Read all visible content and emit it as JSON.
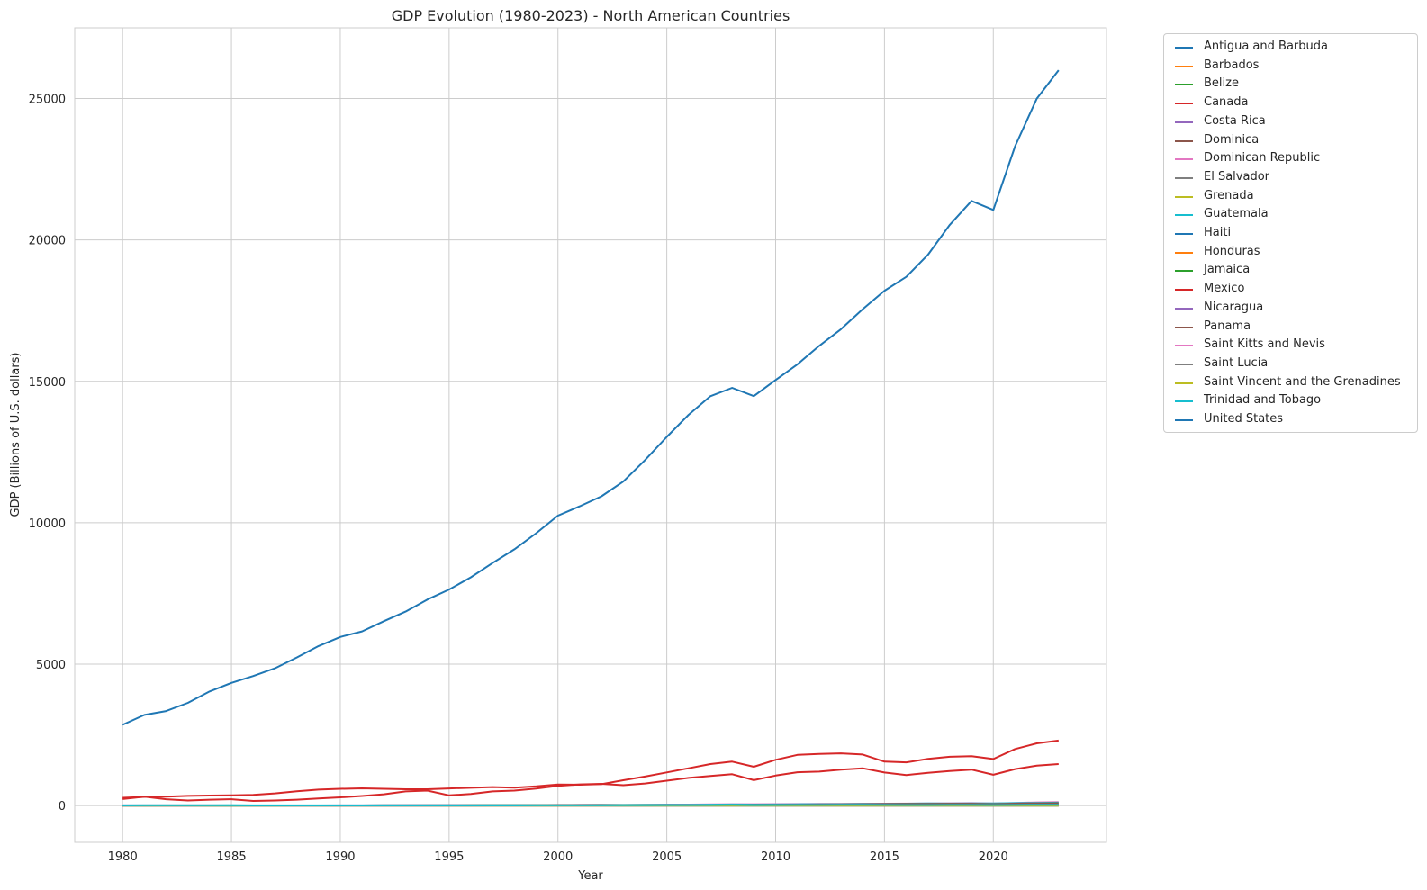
{
  "chart_data": {
    "type": "line",
    "title": "GDP Evolution (1980-2023) - North American Countries",
    "xlabel": "Year",
    "ylabel": "GDP (Billions of U.S. dollars)",
    "xlim": [
      1977.8,
      2025.2
    ],
    "ylim": [
      -1300,
      27500
    ],
    "xticks": [
      1980,
      1985,
      1990,
      1995,
      2000,
      2005,
      2010,
      2015,
      2020
    ],
    "yticks": [
      0,
      5000,
      10000,
      15000,
      20000,
      25000
    ],
    "grid": true,
    "legend_position": "outside-right",
    "x": [
      1980,
      1981,
      1982,
      1983,
      1984,
      1985,
      1986,
      1987,
      1988,
      1989,
      1990,
      1991,
      1992,
      1993,
      1994,
      1995,
      1996,
      1997,
      1998,
      1999,
      2000,
      2001,
      2002,
      2003,
      2004,
      2005,
      2006,
      2007,
      2008,
      2009,
      2010,
      2011,
      2012,
      2013,
      2014,
      2015,
      2016,
      2017,
      2018,
      2019,
      2020,
      2021,
      2022,
      2023
    ],
    "series": [
      {
        "name": "Antigua and Barbuda",
        "color": "#1f77b4",
        "values": [
          0.1,
          0.1,
          0.1,
          0.2,
          0.2,
          0.2,
          0.3,
          0.3,
          0.3,
          0.4,
          0.4,
          0.4,
          0.4,
          0.4,
          0.5,
          0.5,
          0.5,
          0.6,
          0.6,
          0.6,
          0.8,
          0.8,
          0.8,
          0.8,
          0.9,
          1.0,
          1.1,
          1.2,
          1.3,
          1.2,
          1.1,
          1.1,
          1.2,
          1.2,
          1.3,
          1.4,
          1.4,
          1.5,
          1.6,
          1.7,
          1.4,
          1.5,
          1.7,
          1.9
        ]
      },
      {
        "name": "Barbados",
        "color": "#ff7f0e",
        "values": [
          0.9,
          1.0,
          1.0,
          1.1,
          1.2,
          1.2,
          1.3,
          1.4,
          1.5,
          1.6,
          1.7,
          1.7,
          1.6,
          1.6,
          1.7,
          1.8,
          1.9,
          2.1,
          2.3,
          2.4,
          2.6,
          2.7,
          2.7,
          2.8,
          3.0,
          3.3,
          3.6,
          3.9,
          4.0,
          3.9,
          3.9,
          3.9,
          4.0,
          4.0,
          4.1,
          4.3,
          4.5,
          4.6,
          4.7,
          4.9,
          4.5,
          4.7,
          5.6,
          6.2
        ]
      },
      {
        "name": "Belize",
        "color": "#2ca02c",
        "values": [
          0.2,
          0.2,
          0.2,
          0.2,
          0.2,
          0.2,
          0.2,
          0.3,
          0.3,
          0.3,
          0.4,
          0.4,
          0.5,
          0.5,
          0.5,
          0.6,
          0.6,
          0.6,
          0.6,
          0.7,
          0.8,
          0.8,
          0.9,
          0.9,
          1.0,
          1.1,
          1.2,
          1.3,
          1.4,
          1.3,
          1.4,
          1.5,
          1.6,
          1.6,
          1.7,
          1.8,
          1.8,
          1.9,
          1.9,
          2.0,
          1.7,
          2.2,
          2.6,
          3.0
        ]
      },
      {
        "name": "Canada",
        "color": "#d62728",
        "values": [
          274,
          307,
          314,
          341,
          355,
          364,
          377,
          431,
          507,
          566,
          594,
          610,
          592,
          578,
          579,
          605,
          630,
          654,
          634,
          678,
          744,
          738,
          760,
          896,
          1026,
          1173,
          1319,
          1468,
          1553,
          1374,
          1617,
          1793,
          1829,
          1847,
          1806,
          1556,
          1528,
          1650,
          1725,
          1744,
          1648,
          2001,
          2200,
          2300
        ]
      },
      {
        "name": "Costa Rica",
        "color": "#9467bd",
        "values": [
          5,
          3,
          3,
          3,
          4,
          4,
          5,
          5,
          5,
          5,
          6,
          6,
          7,
          8,
          9,
          11,
          11,
          12,
          12,
          13,
          14,
          15,
          16,
          17,
          18,
          20,
          22,
          26,
          29,
          30,
          37,
          42,
          46,
          49,
          50,
          55,
          57,
          58,
          60,
          62,
          61,
          64,
          69,
          86
        ]
      },
      {
        "name": "Dominica",
        "color": "#8c564b",
        "values": [
          0.1,
          0.1,
          0.1,
          0.1,
          0.1,
          0.1,
          0.1,
          0.1,
          0.1,
          0.2,
          0.2,
          0.2,
          0.2,
          0.2,
          0.2,
          0.2,
          0.3,
          0.3,
          0.3,
          0.3,
          0.3,
          0.3,
          0.3,
          0.3,
          0.3,
          0.3,
          0.3,
          0.4,
          0.4,
          0.5,
          0.5,
          0.5,
          0.5,
          0.5,
          0.5,
          0.5,
          0.6,
          0.5,
          0.6,
          0.6,
          0.5,
          0.6,
          0.6,
          0.7
        ]
      },
      {
        "name": "Dominican Republic",
        "color": "#e377c2",
        "values": [
          7,
          8,
          8,
          9,
          9,
          5,
          6,
          5,
          5,
          6,
          7,
          8,
          9,
          10,
          10,
          12,
          13,
          15,
          16,
          17,
          24,
          26,
          27,
          22,
          23,
          36,
          38,
          43,
          48,
          48,
          53,
          57,
          61,
          62,
          66,
          69,
          73,
          76,
          81,
          89,
          79,
          94,
          113,
          121
        ]
      },
      {
        "name": "El Salvador",
        "color": "#7f7f7f",
        "values": [
          4,
          4,
          4,
          4,
          4,
          4,
          4,
          4,
          5,
          5,
          5,
          5,
          6,
          6,
          7,
          8,
          9,
          10,
          11,
          12,
          12,
          13,
          14,
          15,
          16,
          17,
          18,
          20,
          21,
          20,
          21,
          22,
          23,
          24,
          25,
          26,
          27,
          28,
          28,
          29,
          27,
          29,
          32,
          34
        ]
      },
      {
        "name": "Grenada",
        "color": "#bcbd22",
        "values": [
          0.1,
          0.1,
          0.1,
          0.1,
          0.1,
          0.1,
          0.1,
          0.1,
          0.2,
          0.2,
          0.2,
          0.2,
          0.2,
          0.2,
          0.3,
          0.3,
          0.3,
          0.3,
          0.3,
          0.4,
          0.5,
          0.5,
          0.5,
          0.5,
          0.6,
          0.7,
          0.7,
          0.8,
          0.8,
          0.8,
          0.8,
          0.8,
          0.8,
          0.8,
          0.9,
          1.0,
          1.0,
          1.1,
          1.2,
          1.2,
          1.1,
          1.2,
          1.3,
          1.4
        ]
      },
      {
        "name": "Guatemala",
        "color": "#17becf",
        "values": [
          8,
          9,
          9,
          9,
          9,
          10,
          7,
          7,
          8,
          8,
          8,
          9,
          10,
          11,
          12,
          14,
          15,
          17,
          19,
          18,
          19,
          21,
          23,
          25,
          27,
          28,
          30,
          34,
          39,
          38,
          41,
          47,
          50,
          54,
          58,
          63,
          68,
          74,
          73,
          77,
          77,
          86,
          95,
          104
        ]
      },
      {
        "name": "Haiti",
        "color": "#1f77b4",
        "values": [
          1.5,
          1.6,
          1.7,
          1.8,
          1.9,
          2.0,
          2.2,
          2.1,
          2.2,
          2.3,
          2.5,
          2.6,
          2.5,
          2.3,
          2.3,
          2.7,
          2.9,
          3.3,
          3.6,
          3.9,
          3.9,
          3.6,
          3.4,
          3.0,
          3.6,
          4.3,
          4.8,
          5.9,
          6.5,
          6.6,
          6.6,
          7.5,
          7.9,
          8.5,
          8.8,
          8.8,
          8.0,
          8.4,
          9.7,
          8.5,
          8.5,
          11.0,
          14.0,
          16.0
        ]
      },
      {
        "name": "Honduras",
        "color": "#ff7f0e",
        "values": [
          2.8,
          3.0,
          3.1,
          3.3,
          3.5,
          3.7,
          3.9,
          4.2,
          4.5,
          4.9,
          3.6,
          3.7,
          3.7,
          3.7,
          3.6,
          4.0,
          4.1,
          4.7,
          5.3,
          5.4,
          7.1,
          7.6,
          7.8,
          8.1,
          8.6,
          9.6,
          10.8,
          12.3,
          13.8,
          14.6,
          15.8,
          17.7,
          18.5,
          18.5,
          19.8,
          21.0,
          21.7,
          23.1,
          24.0,
          25.1,
          23.8,
          28.5,
          31.7,
          34.4
        ]
      },
      {
        "name": "Jamaica",
        "color": "#2ca02c",
        "values": [
          2.7,
          3.0,
          3.2,
          3.4,
          2.4,
          2.0,
          2.6,
          3.0,
          3.5,
          4.1,
          4.6,
          3.6,
          3.4,
          4.4,
          4.7,
          5.8,
          6.5,
          7.4,
          7.6,
          7.7,
          9.0,
          9.1,
          9.7,
          9.4,
          10.2,
          11.2,
          11.9,
          12.8,
          13.7,
          12.1,
          13.2,
          14.4,
          14.8,
          14.3,
          13.9,
          14.2,
          14.1,
          14.8,
          15.7,
          16.5,
          14.6,
          14.7,
          17.1,
          19.4
        ]
      },
      {
        "name": "Mexico",
        "color": "#d62728",
        "values": [
          230,
          315,
          225,
          180,
          210,
          225,
          165,
          180,
          210,
          250,
          290,
          340,
          400,
          500,
          530,
          360,
          410,
          500,
          530,
          600,
          700,
          750,
          770,
          720,
          780,
          880,
          980,
          1050,
          1110,
          900,
          1060,
          1180,
          1200,
          1270,
          1320,
          1170,
          1080,
          1160,
          1220,
          1270,
          1090,
          1290,
          1410,
          1470
        ]
      },
      {
        "name": "Nicaragua",
        "color": "#9467bd",
        "values": [
          2.2,
          2.5,
          2.6,
          3.0,
          3.2,
          3.4,
          3.5,
          3.7,
          1.8,
          1.0,
          1.0,
          1.8,
          2.0,
          2.0,
          2.0,
          3.2,
          3.4,
          3.6,
          3.8,
          4.0,
          5.1,
          5.3,
          5.2,
          5.3,
          5.8,
          6.3,
          6.8,
          7.4,
          8.5,
          8.4,
          8.8,
          9.8,
          10.5,
          10.8,
          11.9,
          12.8,
          13.3,
          13.8,
          13.1,
          12.6,
          12.6,
          14.0,
          15.7,
          17.4
        ]
      },
      {
        "name": "Panama",
        "color": "#8c564b",
        "values": [
          3.8,
          4.3,
          4.9,
          5.1,
          5.4,
          5.8,
          6.0,
          6.1,
          5.3,
          5.3,
          5.3,
          5.8,
          6.5,
          7.2,
          7.7,
          7.9,
          8.2,
          8.7,
          9.4,
          9.9,
          11.6,
          11.8,
          12.3,
          12.9,
          14.2,
          15.5,
          17.1,
          19.8,
          23.0,
          24.2,
          29.4,
          34.7,
          40.4,
          45.6,
          49.9,
          54.3,
          57.9,
          62.2,
          64.9,
          66.8,
          53.9,
          67.4,
          76.5,
          83.0
        ]
      },
      {
        "name": "Saint Kitts and Nevis",
        "color": "#e377c2",
        "values": [
          0.1,
          0.1,
          0.1,
          0.1,
          0.1,
          0.1,
          0.1,
          0.1,
          0.1,
          0.1,
          0.2,
          0.2,
          0.2,
          0.2,
          0.2,
          0.2,
          0.2,
          0.3,
          0.3,
          0.3,
          0.4,
          0.4,
          0.4,
          0.4,
          0.5,
          0.5,
          0.6,
          0.6,
          0.7,
          0.7,
          0.8,
          0.8,
          0.8,
          0.8,
          0.9,
          0.9,
          1.0,
          1.0,
          1.0,
          1.1,
          0.9,
          0.9,
          1.0,
          1.1
        ]
      },
      {
        "name": "Saint Lucia",
        "color": "#7f7f7f",
        "values": [
          0.2,
          0.2,
          0.2,
          0.2,
          0.2,
          0.2,
          0.2,
          0.3,
          0.3,
          0.3,
          0.4,
          0.4,
          0.4,
          0.5,
          0.5,
          0.5,
          0.5,
          0.5,
          0.6,
          0.6,
          0.7,
          0.7,
          0.7,
          0.7,
          0.8,
          0.9,
          0.9,
          1.0,
          1.0,
          1.0,
          1.0,
          1.1,
          1.2,
          1.2,
          1.3,
          1.3,
          1.4,
          1.5,
          1.7,
          1.7,
          1.4,
          1.6,
          2.1,
          2.3
        ]
      },
      {
        "name": "Saint Vincent and the Grenadines",
        "color": "#bcbd22",
        "values": [
          0.1,
          0.1,
          0.1,
          0.1,
          0.1,
          0.1,
          0.1,
          0.1,
          0.1,
          0.1,
          0.2,
          0.2,
          0.2,
          0.2,
          0.2,
          0.3,
          0.3,
          0.3,
          0.3,
          0.3,
          0.4,
          0.4,
          0.4,
          0.4,
          0.5,
          0.5,
          0.6,
          0.6,
          0.7,
          0.7,
          0.7,
          0.7,
          0.7,
          0.7,
          0.7,
          0.8,
          0.8,
          0.8,
          0.8,
          0.8,
          0.8,
          0.9,
          0.9,
          1.0
        ]
      },
      {
        "name": "Trinidad and Tobago",
        "color": "#17becf",
        "values": [
          6,
          7,
          8,
          8,
          8,
          7,
          5,
          5,
          5,
          5,
          5,
          5,
          5,
          4,
          5,
          5,
          6,
          6,
          6,
          7,
          8,
          9,
          9,
          11,
          13,
          16,
          18,
          21,
          27,
          19,
          22,
          25,
          25,
          26,
          27,
          25,
          22,
          22,
          24,
          24,
          21,
          24,
          30,
          28
        ]
      },
      {
        "name": "United States",
        "color": "#1f77b4",
        "values": [
          2857,
          3207,
          3344,
          3634,
          4037,
          4339,
          4580,
          4855,
          5236,
          5642,
          5963,
          6158,
          6520,
          6859,
          7287,
          7640,
          8073,
          8578,
          9063,
          9631,
          10251,
          10582,
          10936,
          11458,
          12214,
          13037,
          13815,
          14475,
          14770,
          14478,
          15049,
          15600,
          16254,
          16843,
          17551,
          18206,
          18695,
          19477,
          20533,
          21381,
          21061,
          23315,
          25000,
          26000
        ]
      }
    ]
  }
}
